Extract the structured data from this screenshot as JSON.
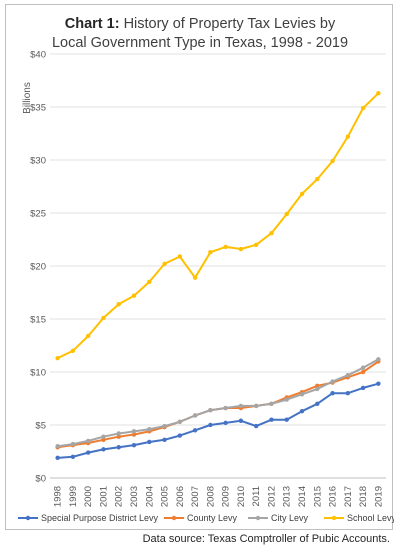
{
  "title_bold": "Chart 1:",
  "title_rest_line1": "History of Property Tax Levies by",
  "title_line2": "Local Government Type in Texas, 1998 - 2019",
  "source_note": "Data source: Texas Comptroller of Pubic Accounts.",
  "chart_data": {
    "type": "line",
    "ylabel": "Billions",
    "ylim": [
      0,
      40
    ],
    "y_ticks": [
      "$0",
      "$5",
      "$10",
      "$15",
      "$20",
      "$25",
      "$30",
      "$35",
      "$40"
    ],
    "grid": true,
    "legend_position": "bottom",
    "categories": [
      "1998",
      "1999",
      "2000",
      "2001",
      "2002",
      "2003",
      "2004",
      "2005",
      "2006",
      "2007",
      "2008",
      "2009",
      "2010",
      "2011",
      "2012",
      "2013",
      "2014",
      "2015",
      "2016",
      "2017",
      "2018",
      "2019"
    ],
    "series": [
      {
        "name": "Special Purpose District Levy",
        "color": "#4472c4",
        "values": [
          1.9,
          2.0,
          2.4,
          2.7,
          2.9,
          3.1,
          3.4,
          3.6,
          4.0,
          4.5,
          5.0,
          5.2,
          5.4,
          4.9,
          5.5,
          5.5,
          6.3,
          7.0,
          8.0,
          8.0,
          8.5,
          8.9
        ]
      },
      {
        "name": "County Levy",
        "color": "#ed7d31",
        "values": [
          2.9,
          3.1,
          3.3,
          3.6,
          3.9,
          4.1,
          4.4,
          4.8,
          5.3,
          5.9,
          6.4,
          6.6,
          6.6,
          6.8,
          7.0,
          7.6,
          8.1,
          8.7,
          9.0,
          9.5,
          10.0,
          11.0
        ]
      },
      {
        "name": "City Levy",
        "color": "#a5a5a5",
        "values": [
          3.0,
          3.2,
          3.5,
          3.9,
          4.2,
          4.4,
          4.6,
          4.9,
          5.3,
          5.9,
          6.4,
          6.6,
          6.8,
          6.8,
          7.0,
          7.4,
          7.9,
          8.4,
          9.1,
          9.7,
          10.4,
          11.2
        ]
      },
      {
        "name": "School Levy",
        "color": "#ffc000",
        "values": [
          11.3,
          12.0,
          13.4,
          15.1,
          16.4,
          17.2,
          18.5,
          20.2,
          20.9,
          18.9,
          21.3,
          21.8,
          21.6,
          22.0,
          23.1,
          24.9,
          26.8,
          28.2,
          29.9,
          32.2,
          34.9,
          36.3
        ]
      }
    ]
  }
}
